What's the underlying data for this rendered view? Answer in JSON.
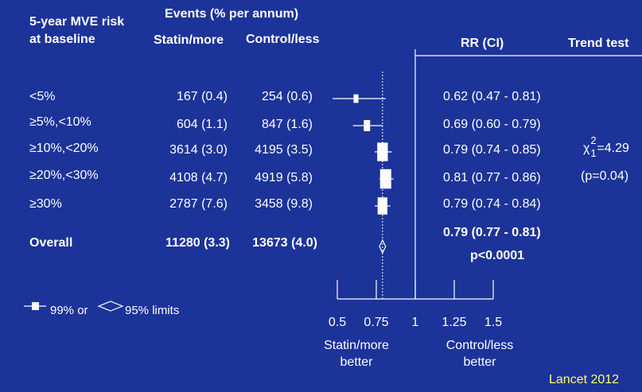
{
  "header": {
    "risk_line1": "5-year MVE risk",
    "risk_line2": "at baseline",
    "events": "Events (% per annum)",
    "statin": "Statin/more",
    "control": "Control/less",
    "rr": "RR (CI)",
    "trend": "Trend test"
  },
  "rows": [
    {
      "label": "<5%",
      "statin": "167 (0.4)",
      "control": "254 (0.6)",
      "rr": "0.62 (0.47 - 0.81)"
    },
    {
      "label": "≥5%,<10%",
      "statin": "604 (1.1)",
      "control": "847 (1.6)",
      "rr": "0.69 (0.60 - 0.79)"
    },
    {
      "label": "≥10%,<20%",
      "statin": "3614 (3.0)",
      "control": "4195 (3.5)",
      "rr": "0.79 (0.74 - 0.85)"
    },
    {
      "label": "≥20%,<30%",
      "statin": "4108 (4.7)",
      "control": "4919 (5.8)",
      "rr": "0.81 (0.77 - 0.86)"
    },
    {
      "label": "≥30%",
      "statin": "2787 (7.6)",
      "control": "3458 (9.8)",
      "rr": "0.79 (0.74 - 0.84)"
    }
  ],
  "overall": {
    "label": "Overall",
    "statin": "11280 (3.3)",
    "control": "13673 (4.0)",
    "rr": "0.79 (0.77 - 0.81)",
    "p": "p<0.0001"
  },
  "trend_test": {
    "chi_symbol": "χ",
    "chi_sup": "2",
    "chi_sub": "1",
    "chi_value": "=4.29",
    "p": "(p=0.04)"
  },
  "legend": {
    "text1": "99% or",
    "text2": "95% limits"
  },
  "axis": {
    "favours_left_1": "Statin/more",
    "favours_left_2": "better",
    "favours_right_1": "Control/less",
    "favours_right_2": "better"
  },
  "source": "Lancet 2012",
  "chart_data": {
    "type": "forest",
    "xlim": [
      0.5,
      1.5
    ],
    "x_ticks": [
      0.5,
      0.75,
      1,
      1.25,
      1.5
    ],
    "x_tick_labels": [
      "0.5",
      "0.75",
      "1",
      "1.25",
      "1.5"
    ],
    "reference_line": 1,
    "overall_line": 0.79,
    "points": [
      {
        "rr": 0.62,
        "lo": 0.47,
        "hi": 0.81,
        "events": 421
      },
      {
        "rr": 0.69,
        "lo": 0.6,
        "hi": 0.79,
        "events": 1451
      },
      {
        "rr": 0.79,
        "lo": 0.74,
        "hi": 0.85,
        "events": 7809
      },
      {
        "rr": 0.81,
        "lo": 0.77,
        "hi": 0.86,
        "events": 9027
      },
      {
        "rr": 0.79,
        "lo": 0.74,
        "hi": 0.84,
        "events": 6245
      }
    ],
    "overall": {
      "rr": 0.79,
      "lo": 0.77,
      "hi": 0.81
    }
  }
}
